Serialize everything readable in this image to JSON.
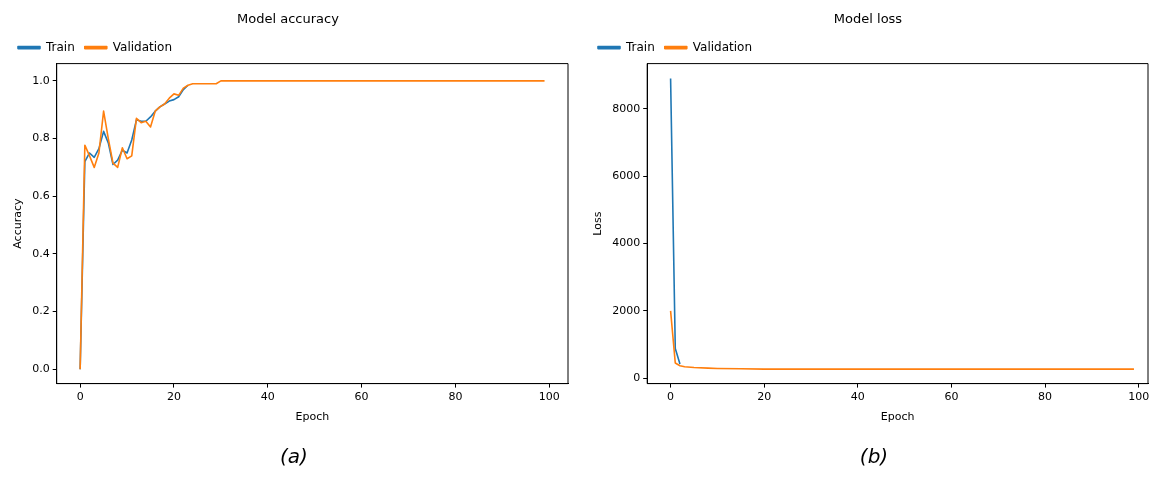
{
  "chart_data": [
    {
      "type": "line",
      "title": "Model accuracy",
      "xlabel": "Epoch",
      "ylabel": "Accuracy",
      "xlim": [
        -5,
        104
      ],
      "xticks": [
        0,
        20,
        40,
        60,
        80,
        100
      ],
      "ylim": [
        -0.05,
        1.06
      ],
      "yticks": [
        {
          "value": 0,
          "label": "0.0"
        },
        {
          "value": 0.2,
          "label": "0.2"
        },
        {
          "value": 0.4,
          "label": "0.4"
        },
        {
          "value": 0.6,
          "label": "0.6"
        },
        {
          "value": 0.8,
          "label": "0.8"
        },
        {
          "value": 1,
          "label": "1.0"
        }
      ],
      "legend": "top left",
      "grid": false,
      "marker": "none",
      "annotations": [
        "(a)"
      ],
      "series": [
        {
          "name": "Train",
          "color": "#1f77b4",
          "x": [
            0,
            1,
            2,
            3,
            4,
            5,
            6,
            7,
            8,
            9,
            10,
            11,
            12,
            13,
            14,
            15,
            16,
            17,
            18,
            19,
            20,
            21,
            22,
            23
          ],
          "values": [
            0,
            0.72,
            0.75,
            0.735,
            0.765,
            0.825,
            0.785,
            0.71,
            0.725,
            0.76,
            0.75,
            0.795,
            0.865,
            0.86,
            0.86,
            0.875,
            0.895,
            0.91,
            0.92,
            0.93,
            0.935,
            0.945,
            0.97,
            0.985
          ]
        },
        {
          "name": "Validation",
          "color": "#ff7f0e",
          "x": [
            0,
            1,
            2,
            3,
            4,
            5,
            6,
            7,
            8,
            9,
            10,
            11,
            12,
            13,
            14,
            15,
            16,
            17,
            18,
            19,
            20,
            21,
            22,
            23,
            24,
            29,
            30,
            99
          ],
          "values": [
            0,
            0.777,
            0.74,
            0.7,
            0.75,
            0.895,
            0.8,
            0.715,
            0.7,
            0.768,
            0.73,
            0.74,
            0.87,
            0.855,
            0.86,
            0.84,
            0.895,
            0.91,
            0.92,
            0.94,
            0.955,
            0.95,
            0.975,
            0.985,
            0.99,
            0.99,
            1.0,
            1.0
          ]
        }
      ]
    },
    {
      "type": "line",
      "title": "Model loss",
      "xlabel": "Epoch",
      "ylabel": "Loss",
      "xlim": [
        -5,
        102
      ],
      "xticks": [
        0,
        20,
        40,
        60,
        80,
        100
      ],
      "ylim": [
        -160,
        9340
      ],
      "yticks": [
        0,
        2000,
        4000,
        6000,
        8000
      ],
      "legend": "top left",
      "grid": false,
      "marker": "none",
      "annotations": [
        "(b)"
      ],
      "series": [
        {
          "name": "Train",
          "color": "#1f77b4",
          "x": [
            0,
            1,
            2
          ],
          "values": [
            8900,
            880,
            420
          ]
        },
        {
          "name": "Validation",
          "color": "#ff7f0e",
          "x": [
            0,
            1,
            2,
            3,
            5,
            8,
            10,
            15,
            20,
            99
          ],
          "values": [
            2000,
            450,
            370,
            340,
            320,
            300,
            290,
            280,
            270,
            270
          ]
        }
      ]
    }
  ]
}
